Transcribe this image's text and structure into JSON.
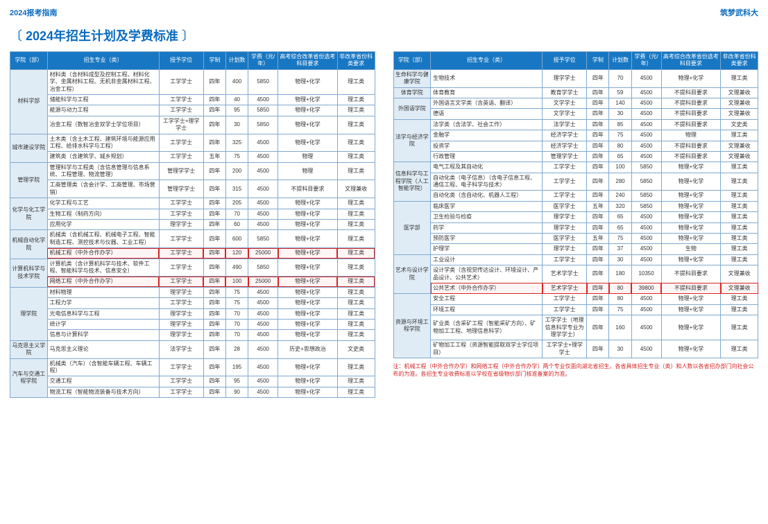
{
  "header": {
    "left": "2024报考指南",
    "right": "筑梦武科大"
  },
  "title": "2024年招生计划及学费标准",
  "columns_header": [
    "学院（部）",
    "招生专业（类）",
    "授予学位",
    "学制",
    "计划数",
    "学费（元/年）",
    "高考综合改革省份选考科目要求",
    "非改革省份科类要求"
  ],
  "footnote": "注：机械工程（中外合作办学）和网络工程（中外合作办学）两个专业仅面向湖北省招生，各省具体招生专业（类）和人数以各省招办部门向社会公布的为准。各招生专业收费标准以学校在省级物价部门核准备案的为准。",
  "left_rows": [
    {
      "dept": "材料学部",
      "span": 4,
      "cells": [
        "材料类（含材料成型及控制工程、材料化学、金属材料工程、无机非金属材料工程、冶金工程）",
        "工学学士",
        "四年",
        "400",
        "5850",
        "物理+化学",
        "理工类"
      ]
    },
    {
      "cells": [
        "储能科学与工程",
        "工学学士",
        "四年",
        "40",
        "4500",
        "物理+化学",
        "理工类"
      ]
    },
    {
      "cells": [
        "能源与动力工程",
        "工学学士",
        "四年",
        "95",
        "5850",
        "物理+化学",
        "理工类"
      ]
    },
    {
      "cells": [
        "冶金工程（数智冶金双学士学位项目）",
        "工学学士+理学学士",
        "四年",
        "30",
        "5850",
        "物理+化学",
        "理工类"
      ]
    },
    {
      "dept": "城市建设学院",
      "span": 2,
      "cells": [
        "土木类（含土木工程、建筑环境与能源应用工程、给排水科学与工程）",
        "工学学士",
        "四年",
        "325",
        "4500",
        "物理+化学",
        "理工类"
      ]
    },
    {
      "cells": [
        "建筑类（含建筑学、城乡规划）",
        "工学学士",
        "五年",
        "75",
        "4500",
        "物理",
        "理工类"
      ]
    },
    {
      "dept": "管理学院",
      "span": 2,
      "cells": [
        "管理科学与工程类（含信息管理与信息系统、工程管理、物流管理）",
        "管理学学士",
        "四年",
        "200",
        "4500",
        "物理",
        "理工类"
      ]
    },
    {
      "cells": [
        "工商管理类（含会计学、工商管理、市场营销）",
        "管理学学士",
        "四年",
        "315",
        "4500",
        "不提科目要求",
        "文理兼收"
      ]
    },
    {
      "dept": "化学与化工学院",
      "span": 3,
      "cells": [
        "化学工程与工艺",
        "工学学士",
        "四年",
        "205",
        "4500",
        "物理+化学",
        "理工类"
      ]
    },
    {
      "cells": [
        "生物工程（制药方向）",
        "工学学士",
        "四年",
        "70",
        "4500",
        "物理+化学",
        "理工类"
      ]
    },
    {
      "cells": [
        "应用化学",
        "理学学士",
        "四年",
        "60",
        "4500",
        "物理+化学",
        "理工类"
      ]
    },
    {
      "dept": "机械自动化学院",
      "span": 2,
      "cells": [
        "机械类（含机械工程、机械电子工程、智能制造工程、测控技术与仪器、工业工程）",
        "工学学士",
        "四年",
        "600",
        "5850",
        "物理+化学",
        "理工类"
      ]
    },
    {
      "cells": [
        "机械工程（中外合作办学）",
        "工学学士",
        "四年",
        "120",
        "25000",
        "物理+化学",
        "理工类"
      ],
      "hl": true
    },
    {
      "dept": "计算机科学与技术学院",
      "span": 2,
      "cells": [
        "计算机类（含计算机科学与技术、软件工程、智能科学与技术、信息安全）",
        "工学学士",
        "四年",
        "490",
        "5850",
        "物理+化学",
        "理工类"
      ]
    },
    {
      "cells": [
        "网络工程（中外合作办学）",
        "工学学士",
        "四年",
        "100",
        "25000",
        "物理+化学",
        "理工类"
      ],
      "hl": true
    },
    {
      "dept": "理学院",
      "span": 5,
      "cells": [
        "材料物理",
        "理学学士",
        "四年",
        "75",
        "4500",
        "物理+化学",
        "理工类"
      ]
    },
    {
      "cells": [
        "工程力学",
        "工学学士",
        "四年",
        "75",
        "4500",
        "物理+化学",
        "理工类"
      ]
    },
    {
      "cells": [
        "光电信息科学与工程",
        "理学学士",
        "四年",
        "70",
        "4500",
        "物理+化学",
        "理工类"
      ]
    },
    {
      "cells": [
        "统计学",
        "理学学士",
        "四年",
        "70",
        "4500",
        "物理+化学",
        "理工类"
      ]
    },
    {
      "cells": [
        "信息与计算科学",
        "理学学士",
        "四年",
        "70",
        "4500",
        "物理+化学",
        "理工类"
      ]
    },
    {
      "dept": "马克思主义学院",
      "span": 1,
      "cells": [
        "马克思主义理论",
        "法学学士",
        "四年",
        "28",
        "4500",
        "历史+思想政治",
        "文史类"
      ]
    },
    {
      "dept": "汽车与交通工程学院",
      "span": 3,
      "cells": [
        "机械类（汽车）（含智能车辆工程、车辆工程）",
        "工学学士",
        "四年",
        "195",
        "4500",
        "物理+化学",
        "理工类"
      ]
    },
    {
      "cells": [
        "交通工程",
        "工学学士",
        "四年",
        "95",
        "4500",
        "物理+化学",
        "理工类"
      ]
    },
    {
      "cells": [
        "物流工程（智能物流装备与技术方向）",
        "工学学士",
        "四年",
        "90",
        "4500",
        "物理+化学",
        "理工类"
      ]
    }
  ],
  "right_rows": [
    {
      "dept": "生命科学与健康学院",
      "span": 1,
      "cells": [
        "生物技术",
        "理学学士",
        "四年",
        "70",
        "4500",
        "物理+化学",
        "理工类"
      ]
    },
    {
      "dept": "体育学院",
      "span": 1,
      "cells": [
        "体育教育",
        "教育学学士",
        "四年",
        "59",
        "4500",
        "不提科目要求",
        "文理兼收"
      ]
    },
    {
      "dept": "外国语学院",
      "span": 2,
      "cells": [
        "外国语言文学类（含英语、翻译）",
        "文学学士",
        "四年",
        "140",
        "4500",
        "不提科目要求",
        "文理兼收"
      ]
    },
    {
      "cells": [
        "德语",
        "文学学士",
        "四年",
        "30",
        "4500",
        "不提科目要求",
        "文理兼收"
      ]
    },
    {
      "dept": "法学与经济学院",
      "span": 4,
      "cells": [
        "法学类（含法学、社会工作）",
        "法学学士",
        "四年",
        "85",
        "4500",
        "不提科目要求",
        "文史类"
      ]
    },
    {
      "cells": [
        "金融学",
        "经济学学士",
        "四年",
        "75",
        "4500",
        "物理",
        "理工类"
      ]
    },
    {
      "cells": [
        "投资学",
        "经济学学士",
        "四年",
        "80",
        "4500",
        "不提科目要求",
        "文理兼收"
      ]
    },
    {
      "cells": [
        "行政管理",
        "管理学学士",
        "四年",
        "65",
        "4500",
        "不提科目要求",
        "文理兼收"
      ]
    },
    {
      "dept": "信息科学与工程学院（人工智能学院）",
      "span": 3,
      "cells": [
        "电气工程及其自动化",
        "工学学士",
        "四年",
        "100",
        "5850",
        "物理+化学",
        "理工类"
      ]
    },
    {
      "cells": [
        "自动化类（电子信息）（含电子信息工程、通信工程、电子科学与技术）",
        "工学学士",
        "四年",
        "280",
        "5850",
        "物理+化学",
        "理工类"
      ]
    },
    {
      "cells": [
        "自动化类（含自动化、机器人工程）",
        "工学学士",
        "四年",
        "240",
        "5850",
        "物理+化学",
        "理工类"
      ]
    },
    {
      "dept": "医学部",
      "span": 5,
      "cells": [
        "临床医学",
        "医学学士",
        "五年",
        "320",
        "5850",
        "物理+化学",
        "理工类"
      ]
    },
    {
      "cells": [
        "卫生检验与检疫",
        "理学学士",
        "四年",
        "65",
        "4500",
        "物理+化学",
        "理工类"
      ]
    },
    {
      "cells": [
        "药学",
        "理学学士",
        "四年",
        "65",
        "4500",
        "物理+化学",
        "理工类"
      ]
    },
    {
      "cells": [
        "预防医学",
        "医学学士",
        "五年",
        "75",
        "4500",
        "物理+化学",
        "理工类"
      ]
    },
    {
      "cells": [
        "护理学",
        "理学学士",
        "四年",
        "37",
        "4500",
        "生物",
        "理工类"
      ]
    },
    {
      "dept": "艺术与设计学院",
      "span": 3,
      "cells": [
        "工业设计",
        "工学学士",
        "四年",
        "30",
        "4500",
        "物理+化学",
        "理工类"
      ]
    },
    {
      "cells": [
        "设计学类（含视觉传达设计、环境设计、产品设计、公共艺术）",
        "艺术学学士",
        "四年",
        "180",
        "10350",
        "不提科目要求",
        "文理兼收"
      ]
    },
    {
      "cells": [
        "公共艺术（中外合作办学）",
        "艺术学学士",
        "四年",
        "80",
        "39800",
        "不提科目要求",
        "文理兼收"
      ],
      "hl": true
    },
    {
      "dept": "资源与环境工程学院",
      "span": 4,
      "cells": [
        "安全工程",
        "工学学士",
        "四年",
        "80",
        "4500",
        "物理+化学",
        "理工类"
      ]
    },
    {
      "cells": [
        "环境工程",
        "工学学士",
        "四年",
        "75",
        "4500",
        "物理+化学",
        "理工类"
      ]
    },
    {
      "cells": [
        "矿业类（含采矿工程（智能采矿方向）、矿物加工工程、地理信息科学）",
        "工学学士（地理信息科学专业为理学学士）",
        "四年",
        "160",
        "4500",
        "物理+化学",
        "理工类"
      ]
    },
    {
      "cells": [
        "矿物加工工程（资源智能提取双学士学位项目）",
        "工学学士+理学学士",
        "四年",
        "30",
        "4500",
        "物理+化学",
        "理工类"
      ]
    }
  ]
}
